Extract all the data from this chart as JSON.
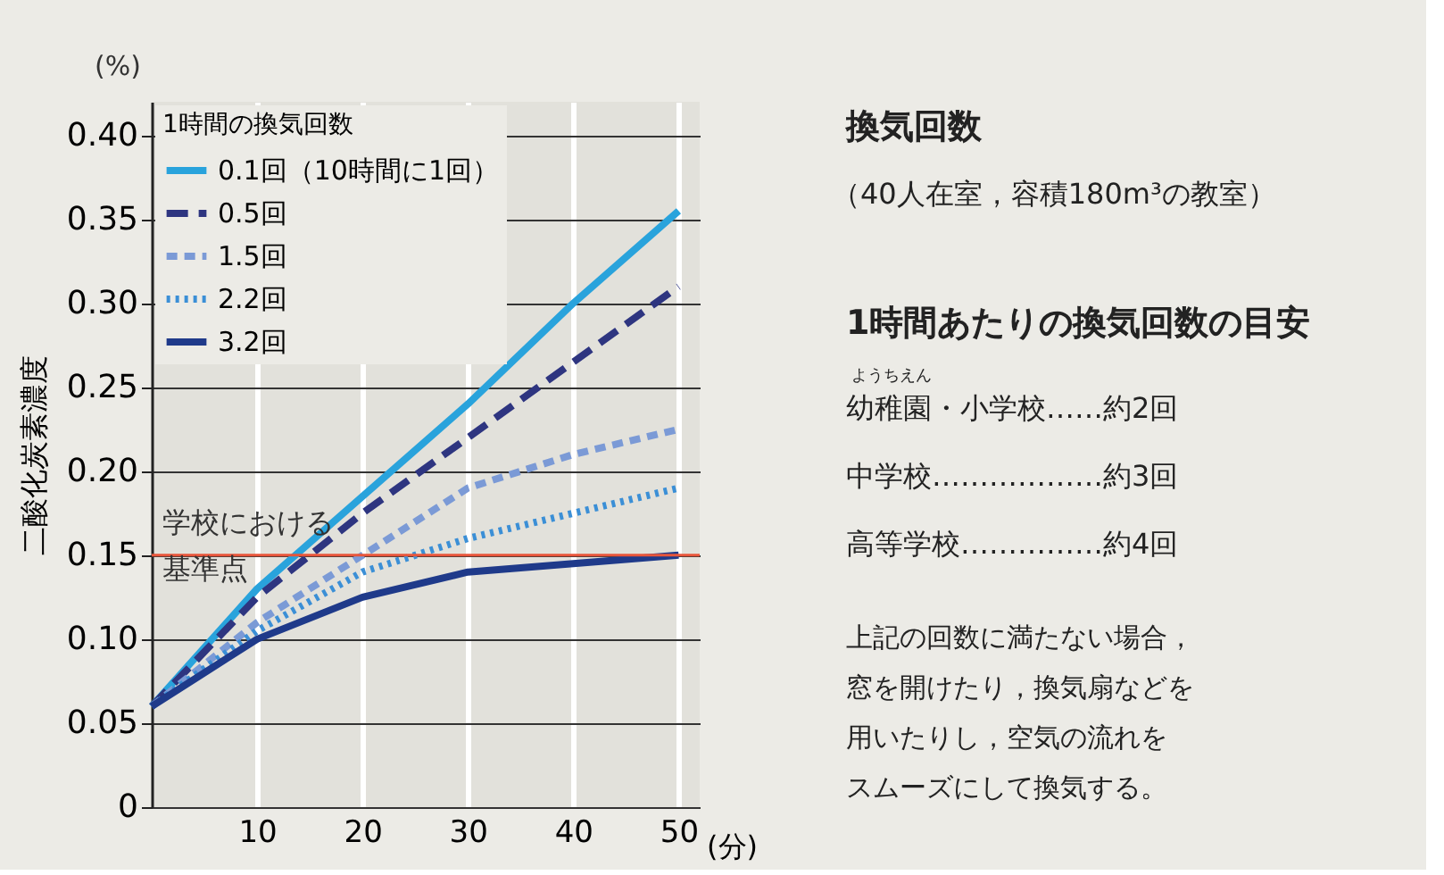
{
  "chart_data": {
    "type": "line",
    "title": "換気回数",
    "subtitle": "（40人在室，容積180m³の教室）",
    "xlabel": "(分)",
    "ylabel": "二酸化炭素濃度",
    "legend_title": "1時間の換気回数",
    "x": [
      0,
      10,
      20,
      30,
      40,
      50
    ],
    "series": [
      {
        "name": "0.1回（10時間に1回）",
        "color": "#29a3dc",
        "line_style": "solid",
        "values": [
          0.06,
          0.13,
          0.185,
          0.24,
          0.3,
          0.355
        ]
      },
      {
        "name": "0.5回",
        "color": "#2e3580",
        "line_style": "dashed",
        "values": [
          0.06,
          0.125,
          0.175,
          0.22,
          0.265,
          0.31
        ]
      },
      {
        "name": "1.5回",
        "color": "#7b9ad6",
        "line_style": "dashed",
        "values": [
          0.06,
          0.11,
          0.15,
          0.19,
          0.21,
          0.225
        ]
      },
      {
        "name": "2.2回",
        "color": "#3b8fd6",
        "line_style": "dotted",
        "values": [
          0.06,
          0.105,
          0.14,
          0.16,
          0.175,
          0.19
        ]
      },
      {
        "name": "3.2回",
        "color": "#1f3a8a",
        "line_style": "solid",
        "values": [
          0.06,
          0.1,
          0.125,
          0.14,
          0.145,
          0.15
        ]
      }
    ],
    "xlim": [
      0,
      52
    ],
    "xticks": [
      10,
      20,
      30,
      40,
      50
    ],
    "ylim": [
      0,
      0.42
    ],
    "yticks": [
      {
        "value": 0,
        "label": "0"
      },
      {
        "value": 0.05,
        "label": "0.05"
      },
      {
        "value": 0.1,
        "label": "0.10"
      },
      {
        "value": 0.15,
        "label": "0.15"
      },
      {
        "value": 0.2,
        "label": "0.20"
      },
      {
        "value": 0.25,
        "label": "0.25"
      },
      {
        "value": 0.3,
        "label": "0.30"
      },
      {
        "value": 0.35,
        "label": "0.35"
      },
      {
        "value": 0.4,
        "label": "0.40"
      }
    ],
    "ref_lines": [
      {
        "axis": "y",
        "value": 0.15,
        "label": "学校における基準点",
        "color": "#e8553a"
      }
    ],
    "grid": true,
    "legend": "top left",
    "annotations": [
      "(%)",
      "1時間あたりの換気回数の目安",
      "ようちえん",
      "幼稚園・小学校……約2回",
      "中学校………………約3回",
      "高等学校……………約4回",
      "上記の回数に満たない場合，",
      "窓を開けたり，換気扇などを",
      "用いたりし，空気の流れを",
      "スムーズにして換気する。"
    ]
  }
}
